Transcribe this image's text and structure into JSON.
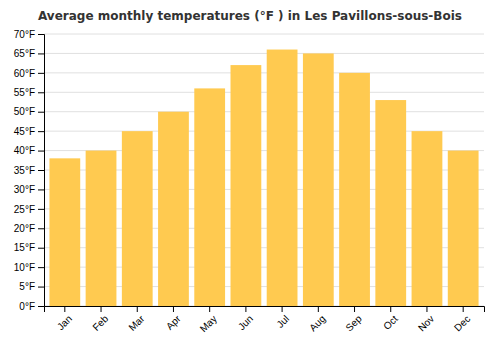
{
  "chart_data": {
    "type": "bar",
    "title": "Average monthly temperatures (°F ) in Les Pavillons-sous-Bois",
    "categories": [
      "Jan",
      "Feb",
      "Mar",
      "Apr",
      "May",
      "Jun",
      "Jul",
      "Aug",
      "Sep",
      "Oct",
      "Nov",
      "Dec"
    ],
    "values": [
      38,
      40,
      45,
      50,
      56,
      62,
      66,
      65,
      60,
      53,
      45,
      40
    ],
    "color": "#FFCA50",
    "ylim": [
      0,
      70
    ],
    "yticks": [
      {
        "value": 0,
        "label": "0°F"
      },
      {
        "value": 5,
        "label": "5°F"
      },
      {
        "value": 10,
        "label": "10°F"
      },
      {
        "value": 15,
        "label": "15°F"
      },
      {
        "value": 20,
        "label": "20°F"
      },
      {
        "value": 25,
        "label": "25°F"
      },
      {
        "value": 30,
        "label": "30°F"
      },
      {
        "value": 35,
        "label": "35°F"
      },
      {
        "value": 40,
        "label": "40°F"
      },
      {
        "value": 45,
        "label": "45°F"
      },
      {
        "value": 50,
        "label": "50°F"
      },
      {
        "value": 55,
        "label": "55°F"
      },
      {
        "value": 60,
        "label": "60°F"
      },
      {
        "value": 65,
        "label": "65°F"
      },
      {
        "value": 70,
        "label": "70°F"
      }
    ],
    "grid": true
  }
}
